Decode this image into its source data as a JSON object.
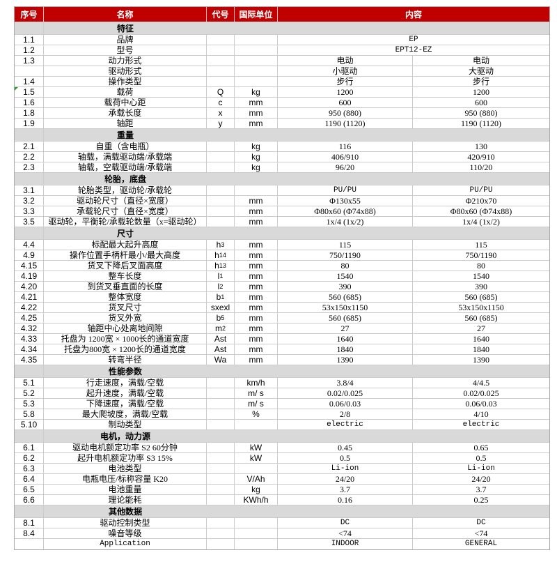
{
  "table": {
    "columns": {
      "index": "序号",
      "name": "名称",
      "code": "代号",
      "unit": "国际单位",
      "content": "内容"
    },
    "colors": {
      "header_bg": "#c00000",
      "header_text": "#ffffff",
      "section_bg": "#d9d9d9",
      "grid_border": "#cccccc",
      "marker_green": "#2f9e2f"
    },
    "rows": [
      {
        "type": "section",
        "title": "特征"
      },
      {
        "type": "data",
        "index": "1.1",
        "name": "品牌",
        "code": "",
        "unit": "",
        "value": "EP"
      },
      {
        "type": "data",
        "index": "1.2",
        "name": "型号",
        "code": "",
        "unit": "",
        "value": "EPT12-EZ"
      },
      {
        "type": "data",
        "index": "1.3",
        "name": "动力形式",
        "code": "",
        "unit": "",
        "v1": "电动",
        "v2": "电动"
      },
      {
        "type": "data",
        "index": "",
        "name": "驱动形式",
        "code": "",
        "unit": "",
        "v1": "小驱动",
        "v2": "大驱动"
      },
      {
        "type": "data",
        "index": "1.4",
        "name": "操作类型",
        "code": "",
        "unit": "",
        "v1": "步行",
        "v2": "步行"
      },
      {
        "type": "data",
        "index": "1.5",
        "name": "载荷",
        "code": "Q",
        "unit": "kg",
        "v1": "1200",
        "v2": "1200",
        "marker": true
      },
      {
        "type": "data",
        "index": "1.6",
        "name": "载荷中心距",
        "code": "c",
        "unit": "mm",
        "v1": "600",
        "v2": "600"
      },
      {
        "type": "data",
        "index": "1.8",
        "name": "承载长度",
        "code": "x",
        "unit": "mm",
        "v1": "950 (880)",
        "v2": "950 (880)"
      },
      {
        "type": "data",
        "index": "1.9",
        "name": "轴距",
        "code": "y",
        "unit": "mm",
        "v1": "1190 (1120)",
        "v2": "1190 (1120)"
      },
      {
        "type": "section",
        "title": "重量"
      },
      {
        "type": "data",
        "index": "2.1",
        "name": "自重（含电瓶）",
        "code": "",
        "unit": "kg",
        "v1": "116",
        "v2": "130"
      },
      {
        "type": "data",
        "index": "2.2",
        "name": "轴载，满载驱动端/承载端",
        "code": "",
        "unit": "kg",
        "v1": "406/910",
        "v2": "420/910"
      },
      {
        "type": "data",
        "index": "2.3",
        "name": "轴载，空载驱动端/承载端",
        "code": "",
        "unit": "kg",
        "v1": "96/20",
        "v2": "110/20"
      },
      {
        "type": "section",
        "title": "轮胎，底盘"
      },
      {
        "type": "data",
        "index": "3.1",
        "name": "轮胎类型，驱动轮/承载轮",
        "code": "",
        "unit": "",
        "v1": "PU/PU",
        "v2": "PU/PU"
      },
      {
        "type": "data",
        "index": "3.2",
        "name": "驱动轮尺寸（直径×宽度）",
        "code": "",
        "unit": "mm",
        "v1": "Φ130x55",
        "v2": "Φ210x70"
      },
      {
        "type": "data",
        "index": "3.3",
        "name": "承载轮尺寸（直径×宽度）",
        "code": "",
        "unit": "mm",
        "v1": "Φ80x60 (Φ74x88)",
        "v2": "Φ80x60 (Φ74x88)"
      },
      {
        "type": "data",
        "index": "3.5",
        "name": "驱动轮，平衡轮/承载轮数量（x=驱动轮）",
        "code": "",
        "unit": "mm",
        "v1": "1x/4 (1x/2)",
        "v2": "1x/4 (1x/2)"
      },
      {
        "type": "section",
        "title": "尺寸"
      },
      {
        "type": "data",
        "index": "4.4",
        "name": "标配最大起升高度",
        "code": "h",
        "code_sub": "3",
        "unit": "mm",
        "v1": "115",
        "v2": "115"
      },
      {
        "type": "data",
        "index": "4.9",
        "name": "操作位置手柄杆最小/最大高度",
        "code": "h",
        "code_sub": "14",
        "unit": "mm",
        "v1": "750/1190",
        "v2": "750/1190"
      },
      {
        "type": "data",
        "index": "4.15",
        "name": "货叉下降后叉面高度",
        "code": "h",
        "code_sub": "13",
        "unit": "mm",
        "v1": "80",
        "v2": "80"
      },
      {
        "type": "data",
        "index": "4.19",
        "name": "整车长度",
        "code": "l",
        "code_sub": "1",
        "unit": "mm",
        "v1": "1540",
        "v2": "1540"
      },
      {
        "type": "data",
        "index": "4.20",
        "name": "到货叉垂直面的长度",
        "code": "l",
        "code_sub": "2",
        "unit": "mm",
        "v1": "390",
        "v2": "390"
      },
      {
        "type": "data",
        "index": "4.21",
        "name": "整体宽度",
        "code": "b",
        "code_sub": "1",
        "unit": "mm",
        "v1": "560 (685)",
        "v2": "560 (685)"
      },
      {
        "type": "data",
        "index": "4.22",
        "name": "货叉尺寸",
        "code": "sxexl",
        "unit": "mm",
        "v1": "53x150x1150",
        "v2": "53x150x1150"
      },
      {
        "type": "data",
        "index": "4.25",
        "name": "货叉外宽",
        "code": "b",
        "code_sub": "5",
        "unit": "mm",
        "v1": "560 (685)",
        "v2": "560 (685)"
      },
      {
        "type": "data",
        "index": "4.32",
        "name": "轴距中心处离地间隙",
        "code": "m",
        "code_sub": "2",
        "unit": "mm",
        "v1": "27",
        "v2": "27"
      },
      {
        "type": "data",
        "index": "4.33",
        "name": "托盘为 1200宽 × 1000长的通道宽度",
        "code": "Ast",
        "unit": "mm",
        "v1": "1640",
        "v2": "1640"
      },
      {
        "type": "data",
        "index": "4.34",
        "name": "托盘为800宽 × 1200长的通道宽度",
        "code": "Ast",
        "unit": "mm",
        "v1": "1840",
        "v2": "1840"
      },
      {
        "type": "data",
        "index": "4.35",
        "name": "转弯半径",
        "code": "Wa",
        "unit": "mm",
        "v1": "1390",
        "v2": "1390"
      },
      {
        "type": "section",
        "title": "性能参数"
      },
      {
        "type": "data",
        "index": "5.1",
        "name": "行走速度，满载/空载",
        "code": "",
        "unit": "km/h",
        "v1": "3.8/4",
        "v2": "4/4.5"
      },
      {
        "type": "data",
        "index": "5.2",
        "name": "起升速度，满载/空载",
        "code": "",
        "unit": "m/ s",
        "v1": "0.02/0.025",
        "v2": "0.02/0.025"
      },
      {
        "type": "data",
        "index": "5.3",
        "name": "下降速度，满载/空载",
        "code": "",
        "unit": "m/ s",
        "v1": "0.06/0.03",
        "v2": "0.06/0.03"
      },
      {
        "type": "data",
        "index": "5.8",
        "name": "最大爬坡度，满载/空载",
        "code": "",
        "unit": "%",
        "v1": "2/8",
        "v2": "4/10"
      },
      {
        "type": "data",
        "index": "5.10",
        "name": "制动类型",
        "code": "",
        "unit": "",
        "v1": "electric",
        "v2": "electric"
      },
      {
        "type": "section",
        "title": "电机，动力源"
      },
      {
        "type": "data",
        "index": "6.1",
        "name": "驱动电机额定功率 S2 60分钟",
        "code": "",
        "unit": "kW",
        "v1": "0.45",
        "v2": "0.65"
      },
      {
        "type": "data",
        "index": "6.2",
        "name": "起升电机额定功率 S3 15%",
        "code": "",
        "unit": "kW",
        "v1": "0.5",
        "v2": "0.5"
      },
      {
        "type": "data",
        "index": "6.3",
        "name": "电池类型",
        "code": "",
        "unit": "",
        "v1": "Li-ion",
        "v2": "Li-ion"
      },
      {
        "type": "data",
        "index": "6.4",
        "name": "电瓶电压/标称容量 K20",
        "code": "",
        "unit": "V/Ah",
        "v1": "24/20",
        "v2": "24/20"
      },
      {
        "type": "data",
        "index": "6.5",
        "name": "电池重量",
        "code": "",
        "unit": "kg",
        "v1": "3.7",
        "v2": "3.7"
      },
      {
        "type": "data",
        "index": "6.6",
        "name": "理论能耗",
        "code": "",
        "unit": "KWh/h",
        "v1": "0.16",
        "v2": "0.25"
      },
      {
        "type": "section",
        "title": "其他数据"
      },
      {
        "type": "data",
        "index": "8.1",
        "name": "驱动控制类型",
        "code": "",
        "unit": "",
        "v1": "DC",
        "v2": "DC"
      },
      {
        "type": "data",
        "index": "8.4",
        "name": "噪音等级",
        "code": "",
        "unit": "",
        "v1": "<74",
        "v2": "<74"
      },
      {
        "type": "data",
        "index": "",
        "name": "Application",
        "code": "",
        "unit": "",
        "v1": "INDOOR",
        "v2": "GENERAL"
      }
    ]
  }
}
